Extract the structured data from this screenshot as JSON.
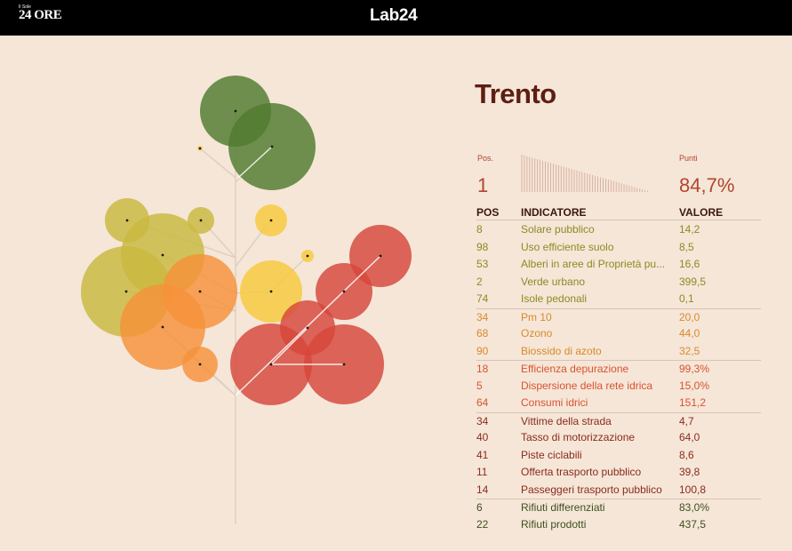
{
  "header": {
    "logo_small": "Il Sole",
    "logo_main": "24 ORE",
    "center_logo": "Lab24"
  },
  "city": "Trento",
  "summary": {
    "pos_label": "Pos.",
    "pos_value": "1",
    "points_label": "Punti",
    "points_value": "84,7%"
  },
  "table": {
    "headers": {
      "pos": "POS",
      "indicator": "INDICATORE",
      "value": "VALORE"
    },
    "rows": [
      {
        "pos": "8",
        "indicator": "Solare pubblico",
        "value": "14,2",
        "group": 0
      },
      {
        "pos": "98",
        "indicator": "Uso efficiente suolo",
        "value": "8,5",
        "group": 0
      },
      {
        "pos": "53",
        "indicator": "Alberi in aree di Proprietà pu...",
        "value": "16,6",
        "group": 0
      },
      {
        "pos": "2",
        "indicator": "Verde urbano",
        "value": "399,5",
        "group": 0
      },
      {
        "pos": "74",
        "indicator": "Isole pedonali",
        "value": "0,1",
        "group": 0
      },
      {
        "pos": "34",
        "indicator": "Pm 10",
        "value": "20,0",
        "group": 1
      },
      {
        "pos": "68",
        "indicator": "Ozono",
        "value": "44,0",
        "group": 1
      },
      {
        "pos": "90",
        "indicator": "Biossido di azoto",
        "value": "32,5",
        "group": 1
      },
      {
        "pos": "18",
        "indicator": "Efficienza depurazione",
        "value": "99,3%",
        "group": 2
      },
      {
        "pos": "5",
        "indicator": "Dispersione della rete idrica",
        "value": "15,0%",
        "group": 2
      },
      {
        "pos": "64",
        "indicator": "Consumi idrici",
        "value": "151,2",
        "group": 2
      },
      {
        "pos": "34",
        "indicator": "Vittime della strada",
        "value": "4,7",
        "group": 3
      },
      {
        "pos": "40",
        "indicator": "Tasso di motorizzazione",
        "value": "64,0",
        "group": 3
      },
      {
        "pos": "41",
        "indicator": "Piste ciclabili",
        "value": "8,6",
        "group": 3
      },
      {
        "pos": "11",
        "indicator": "Offerta trasporto pubblico",
        "value": "39,8",
        "group": 3
      },
      {
        "pos": "14",
        "indicator": "Passeggeri trasporto pubblico",
        "value": "100,8",
        "group": 3
      },
      {
        "pos": "6",
        "indicator": "Rifiuti differenziati",
        "value": "83,0%",
        "group": 4
      },
      {
        "pos": "22",
        "indicator": "Rifiuti prodotti",
        "value": "437,5",
        "group": 4
      }
    ]
  },
  "colors": {
    "background": "#f5e6d8",
    "topbar": "#000000",
    "title": "#5e1e12",
    "accent": "#b2452c",
    "group_text": [
      "#8d8a22",
      "#d98a2a",
      "#d9532f",
      "#8b2b1c",
      "#3f4f1c"
    ],
    "circle_fill": {
      "olive": "#c9b840",
      "orange": "#f6913b",
      "yellow": "#f8c93c",
      "red": "#d7463a",
      "green": "#517a2e"
    }
  }
}
